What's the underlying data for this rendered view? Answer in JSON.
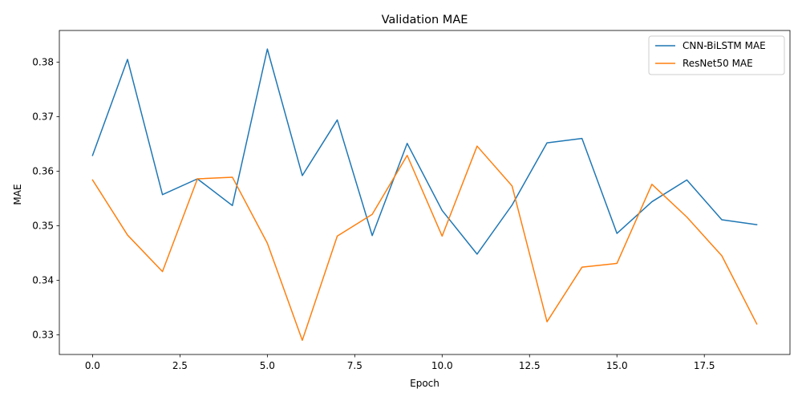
{
  "chart_data": {
    "type": "line",
    "title": "Validation MAE",
    "xlabel": "Epoch",
    "ylabel": "MAE",
    "xlim": [
      -0.95,
      19.95
    ],
    "ylim": [
      0.3264,
      0.3858
    ],
    "xticks": [
      0.0,
      2.5,
      5.0,
      7.5,
      10.0,
      12.5,
      15.0,
      17.5
    ],
    "xtick_labels": [
      "0.0",
      "2.5",
      "5.0",
      "7.5",
      "10.0",
      "12.5",
      "15.0",
      "17.5"
    ],
    "yticks": [
      0.33,
      0.34,
      0.35,
      0.36,
      0.37,
      0.38
    ],
    "ytick_labels": [
      "0.33",
      "0.34",
      "0.35",
      "0.36",
      "0.37",
      "0.38"
    ],
    "grid": false,
    "legend_position": "top-right",
    "x": [
      0,
      1,
      2,
      3,
      4,
      5,
      6,
      7,
      8,
      9,
      10,
      11,
      12,
      13,
      14,
      15,
      16,
      17,
      18,
      19
    ],
    "series": [
      {
        "name": "CNN-BiLSTM MAE",
        "color": "#1f77b4",
        "values": [
          0.3629,
          0.3805,
          0.3557,
          0.3586,
          0.3537,
          0.3824,
          0.3592,
          0.3694,
          0.3482,
          0.3651,
          0.3528,
          0.3448,
          0.3538,
          0.3652,
          0.366,
          0.3486,
          0.3544,
          0.3584,
          0.3511,
          0.3502
        ]
      },
      {
        "name": "ResNet50 MAE",
        "color": "#ff7f0e",
        "values": [
          0.3584,
          0.3483,
          0.3416,
          0.3586,
          0.3589,
          0.3468,
          0.329,
          0.3481,
          0.3521,
          0.3629,
          0.3481,
          0.3646,
          0.3573,
          0.3324,
          0.3424,
          0.3431,
          0.3576,
          0.3516,
          0.3445,
          0.332
        ]
      }
    ]
  }
}
